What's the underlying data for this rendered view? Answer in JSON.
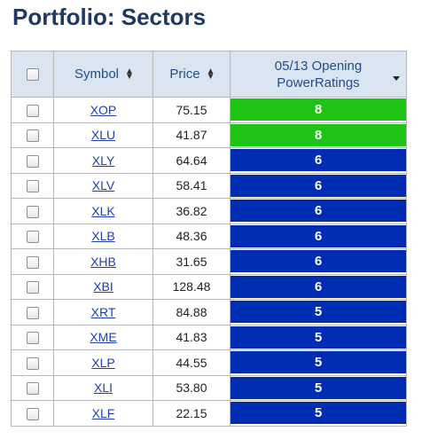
{
  "page": {
    "title": "Portfolio: Sectors"
  },
  "columns": {
    "symbol": "Symbol",
    "price": "Price",
    "rating_line1": "05/13 Opening",
    "rating_line2": "PowerRatings"
  },
  "colors": {
    "title": "#1f3864",
    "rating_high": "#1ec414",
    "rating_mid": "#002cb3"
  },
  "icons": {
    "sort": "sort-updown-icon",
    "dropdown": "caret-down-icon",
    "checkbox": "checkbox-icon"
  },
  "rows": [
    {
      "symbol": "XOP",
      "price": "75.15",
      "rating": "8"
    },
    {
      "symbol": "XLU",
      "price": "41.87",
      "rating": "8"
    },
    {
      "symbol": "XLY",
      "price": "64.64",
      "rating": "6"
    },
    {
      "symbol": "XLV",
      "price": "58.41",
      "rating": "6"
    },
    {
      "symbol": "XLK",
      "price": "36.82",
      "rating": "6"
    },
    {
      "symbol": "XLB",
      "price": "48.36",
      "rating": "6"
    },
    {
      "symbol": "XHB",
      "price": "31.65",
      "rating": "6"
    },
    {
      "symbol": "XBI",
      "price": "128.48",
      "rating": "6"
    },
    {
      "symbol": "XRT",
      "price": "84.88",
      "rating": "5"
    },
    {
      "symbol": "XME",
      "price": "41.83",
      "rating": "5"
    },
    {
      "symbol": "XLP",
      "price": "44.55",
      "rating": "5"
    },
    {
      "symbol": "XLI",
      "price": "53.80",
      "rating": "5"
    },
    {
      "symbol": "XLF",
      "price": "22.15",
      "rating": "5"
    }
  ]
}
